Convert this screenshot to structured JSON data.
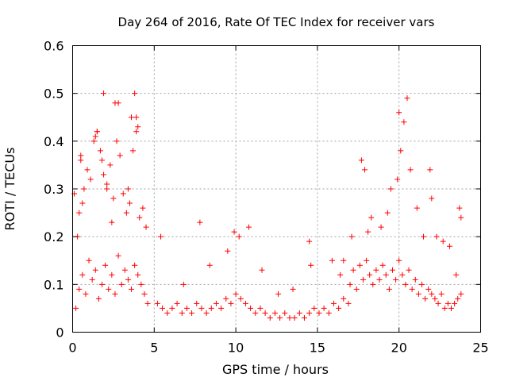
{
  "chart_data": {
    "type": "scatter",
    "title": "Day 264 of 2016, Rate Of TEC Index for receiver vars",
    "xlabel": "GPS time / hours",
    "ylabel": "ROTI / TECUs",
    "xlim": [
      0,
      25
    ],
    "ylim": [
      0,
      0.6
    ],
    "xticks": [
      0,
      5,
      10,
      15,
      20,
      25
    ],
    "xtick_labels": [
      "0",
      "5",
      "10",
      "15",
      "20",
      "25"
    ],
    "yticks": [
      0,
      0.1,
      0.2,
      0.3,
      0.4,
      0.5,
      0.6
    ],
    "ytick_labels": [
      "0",
      "0.1",
      "0.2",
      "0.3",
      "0.4",
      "0.5",
      "0.6"
    ],
    "grid": true,
    "marker": "plus",
    "marker_color": "#ff0000",
    "series": [
      {
        "name": "ROTI",
        "x": [
          0.2,
          0.4,
          0.6,
          0.8,
          1.0,
          1.2,
          1.4,
          1.6,
          1.8,
          2.0,
          2.2,
          2.4,
          2.6,
          2.8,
          3.0,
          3.2,
          3.4,
          3.6,
          3.8,
          4.0,
          4.2,
          4.4,
          4.6,
          0.1,
          0.3,
          0.5,
          0.7,
          0.9,
          1.1,
          1.3,
          1.5,
          1.7,
          1.9,
          2.1,
          2.3,
          2.5,
          2.7,
          2.9,
          3.1,
          3.3,
          3.5,
          3.7,
          3.9,
          4.1,
          4.3,
          4.5,
          0.5,
          1.4,
          1.9,
          2.6,
          2.8,
          3.6,
          3.8,
          3.9,
          4.0,
          1.8,
          1.5,
          0.4,
          0.6,
          2.1,
          2.4,
          3.4,
          5.2,
          5.5,
          5.8,
          6.1,
          6.4,
          6.7,
          7.0,
          7.3,
          7.6,
          7.9,
          8.2,
          8.5,
          8.8,
          9.1,
          9.4,
          9.7,
          10.0,
          10.3,
          10.6,
          10.9,
          11.2,
          11.5,
          11.8,
          12.1,
          12.4,
          12.7,
          13.0,
          13.3,
          13.6,
          13.9,
          14.2,
          14.5,
          14.8,
          15.1,
          15.4,
          15.7,
          16.0,
          16.3,
          16.6,
          16.9,
          7.8,
          8.4,
          9.9,
          10.2,
          10.8,
          14.5,
          14.6,
          5.4,
          6.8,
          9.5,
          11.6,
          12.6,
          13.5,
          15.9,
          16.4,
          17.0,
          17.2,
          17.4,
          17.6,
          17.8,
          18.0,
          18.2,
          18.4,
          18.6,
          18.8,
          19.0,
          19.2,
          19.4,
          19.6,
          19.8,
          20.0,
          20.2,
          20.4,
          20.6,
          20.8,
          21.0,
          21.2,
          21.4,
          21.6,
          21.8,
          22.0,
          22.2,
          22.4,
          22.6,
          22.8,
          23.0,
          23.2,
          23.4,
          23.6,
          23.8,
          17.7,
          17.9,
          18.3,
          19.5,
          19.9,
          20.3,
          20.5,
          20.1,
          20.0,
          20.7,
          21.9,
          22.0,
          23.7,
          23.8,
          16.6,
          17.1,
          18.1,
          18.9,
          19.3,
          21.1,
          21.5,
          22.3,
          22.7,
          23.1,
          23.5
        ],
        "y": [
          0.05,
          0.09,
          0.12,
          0.08,
          0.15,
          0.11,
          0.13,
          0.07,
          0.1,
          0.14,
          0.09,
          0.12,
          0.08,
          0.16,
          0.1,
          0.13,
          0.11,
          0.09,
          0.14,
          0.12,
          0.1,
          0.08,
          0.06,
          0.29,
          0.2,
          0.36,
          0.3,
          0.34,
          0.32,
          0.4,
          0.42,
          0.38,
          0.33,
          0.3,
          0.35,
          0.28,
          0.4,
          0.37,
          0.29,
          0.25,
          0.27,
          0.38,
          0.45,
          0.24,
          0.26,
          0.22,
          0.37,
          0.41,
          0.5,
          0.48,
          0.48,
          0.45,
          0.5,
          0.42,
          0.43,
          0.36,
          0.42,
          0.25,
          0.27,
          0.31,
          0.23,
          0.3,
          0.06,
          0.05,
          0.04,
          0.05,
          0.06,
          0.04,
          0.05,
          0.04,
          0.06,
          0.05,
          0.04,
          0.05,
          0.06,
          0.05,
          0.07,
          0.06,
          0.08,
          0.07,
          0.06,
          0.05,
          0.04,
          0.05,
          0.04,
          0.03,
          0.04,
          0.03,
          0.04,
          0.03,
          0.03,
          0.04,
          0.03,
          0.04,
          0.05,
          0.04,
          0.05,
          0.04,
          0.06,
          0.05,
          0.07,
          0.06,
          0.23,
          0.14,
          0.21,
          0.2,
          0.22,
          0.19,
          0.14,
          0.2,
          0.1,
          0.17,
          0.13,
          0.08,
          0.09,
          0.15,
          0.12,
          0.1,
          0.13,
          0.09,
          0.14,
          0.11,
          0.15,
          0.12,
          0.1,
          0.13,
          0.11,
          0.14,
          0.12,
          0.09,
          0.13,
          0.11,
          0.15,
          0.12,
          0.1,
          0.13,
          0.09,
          0.11,
          0.08,
          0.1,
          0.07,
          0.09,
          0.08,
          0.07,
          0.06,
          0.08,
          0.05,
          0.06,
          0.05,
          0.06,
          0.07,
          0.08,
          0.36,
          0.34,
          0.24,
          0.3,
          0.32,
          0.44,
          0.49,
          0.38,
          0.46,
          0.34,
          0.34,
          0.28,
          0.26,
          0.24,
          0.15,
          0.2,
          0.21,
          0.22,
          0.25,
          0.26,
          0.2,
          0.2,
          0.19,
          0.18,
          0.12
        ]
      }
    ]
  }
}
